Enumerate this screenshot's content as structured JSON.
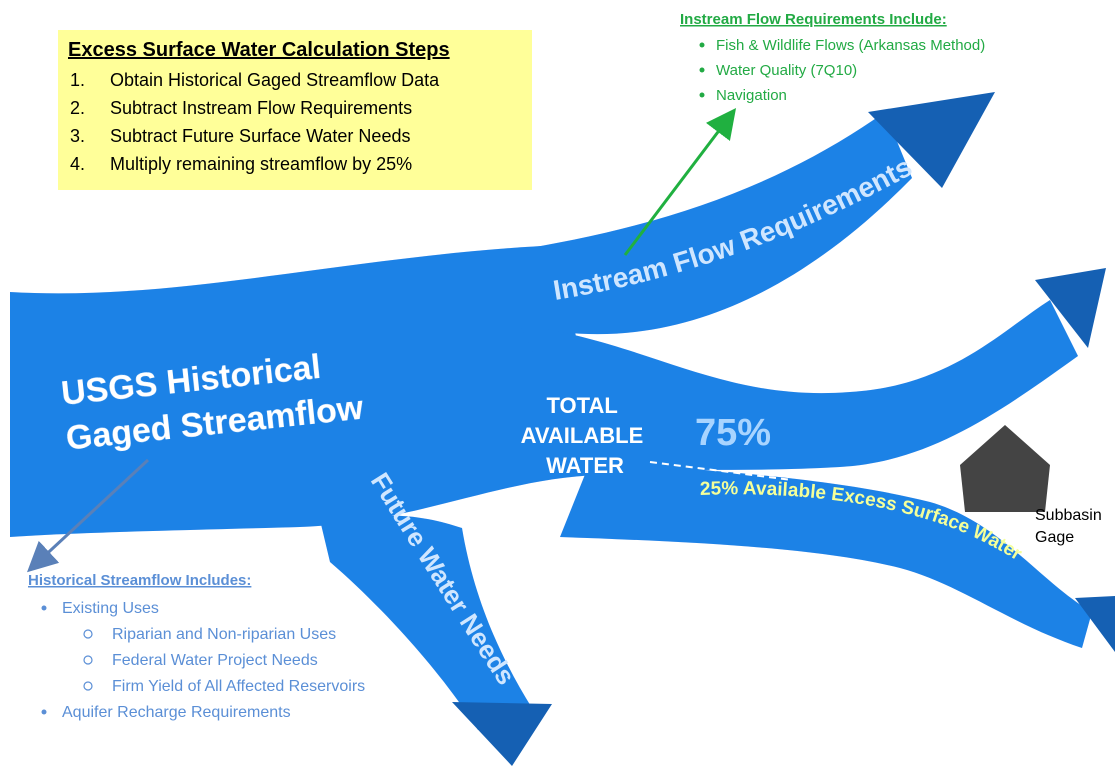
{
  "steps": {
    "title": "Excess Surface Water Calculation Steps",
    "items": [
      {
        "number": "1.",
        "text": "Obtain Historical Gaged Streamflow Data"
      },
      {
        "number": "2.",
        "text": "Subtract Instream Flow Requirements"
      },
      {
        "number": "3.",
        "text": "Subtract Future Surface Water Needs"
      },
      {
        "number": "4.",
        "text": "Multiply remaining streamflow by 25%"
      }
    ]
  },
  "instream_requirements": {
    "title": "Instream Flow Requirements Include:",
    "items": [
      "Fish & Wildlife Flows (Arkansas Method)",
      "Water Quality (7Q10)",
      "Navigation"
    ]
  },
  "historical_streamflow": {
    "title": "Historical Streamflow Includes:",
    "items": [
      {
        "text": "Existing Uses",
        "subitems": [
          "Riparian and Non-riparian Uses",
          "Federal Water Project Needs",
          "Firm Yield of All Affected Reservoirs"
        ]
      },
      {
        "text": "Aquifer  Recharge Requirements"
      }
    ]
  },
  "flows": {
    "main": [
      "USGS Historical",
      "Gaged Streamflow"
    ],
    "instream": "Instream Flow Requirements",
    "future": "Future Water Needs",
    "total": [
      "TOTAL",
      "AVAILABLE",
      "WATER"
    ],
    "percent": "75%",
    "excess": "25% Available Excess Surface Water"
  },
  "gage": [
    "Subbasin",
    "Gage"
  ]
}
